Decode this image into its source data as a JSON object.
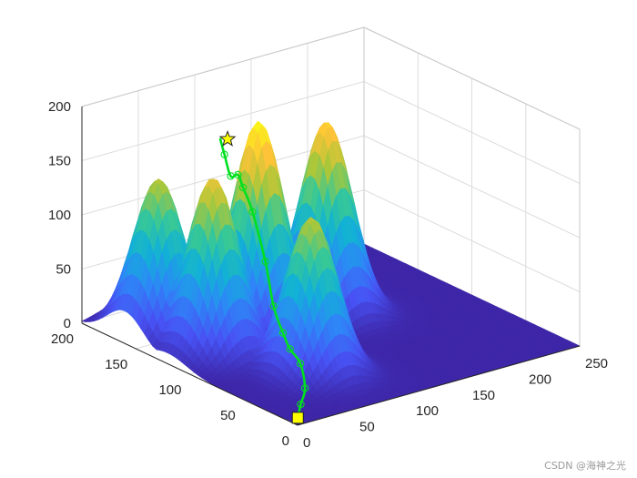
{
  "chart_data": {
    "type": "surface",
    "view": "3d",
    "xlim": [
      0,
      250
    ],
    "ylim": [
      0,
      200
    ],
    "zlim": [
      0,
      200
    ],
    "x_ticks": [
      0,
      50,
      100,
      150,
      200,
      250
    ],
    "y_ticks": [
      0,
      50,
      100,
      150,
      200
    ],
    "z_ticks": [
      0,
      50,
      100,
      150,
      200
    ],
    "x_tick_labels": [
      "0",
      "50",
      "100",
      "150",
      "200",
      "250"
    ],
    "y_tick_labels": [
      "0",
      "50",
      "100",
      "150",
      "200"
    ],
    "z_tick_labels": [
      "0",
      "50",
      "100",
      "150",
      "200"
    ],
    "grid": true,
    "colormap": "parula",
    "peaks": [
      {
        "x": 40,
        "y": 120,
        "height": 160
      },
      {
        "x": 30,
        "y": 160,
        "height": 143
      },
      {
        "x": 90,
        "y": 130,
        "height": 193
      },
      {
        "x": 150,
        "y": 130,
        "height": 175
      },
      {
        "x": 70,
        "y": 60,
        "height": 143
      }
    ],
    "path": [
      {
        "x": 5,
        "y": 5,
        "z": 3
      },
      {
        "x": 20,
        "y": 18,
        "z": 5
      },
      {
        "x": 40,
        "y": 35,
        "z": 6
      },
      {
        "x": 55,
        "y": 55,
        "z": 15
      },
      {
        "x": 65,
        "y": 75,
        "z": 16
      },
      {
        "x": 75,
        "y": 92,
        "z": 20
      },
      {
        "x": 82,
        "y": 108,
        "z": 35
      },
      {
        "x": 88,
        "y": 122,
        "z": 68
      },
      {
        "x": 92,
        "y": 138,
        "z": 105
      },
      {
        "x": 95,
        "y": 150,
        "z": 121
      },
      {
        "x": 102,
        "y": 162,
        "z": 125
      },
      {
        "x": 108,
        "y": 175,
        "z": 116
      },
      {
        "x": 112,
        "y": 185,
        "z": 130
      },
      {
        "x": 115,
        "y": 192,
        "z": 140
      }
    ],
    "start_marker": "square",
    "goal_marker": "star",
    "path_color": "#00e020",
    "marker_fill": "#ffff00"
  },
  "watermark": "CSDN @海神之光"
}
